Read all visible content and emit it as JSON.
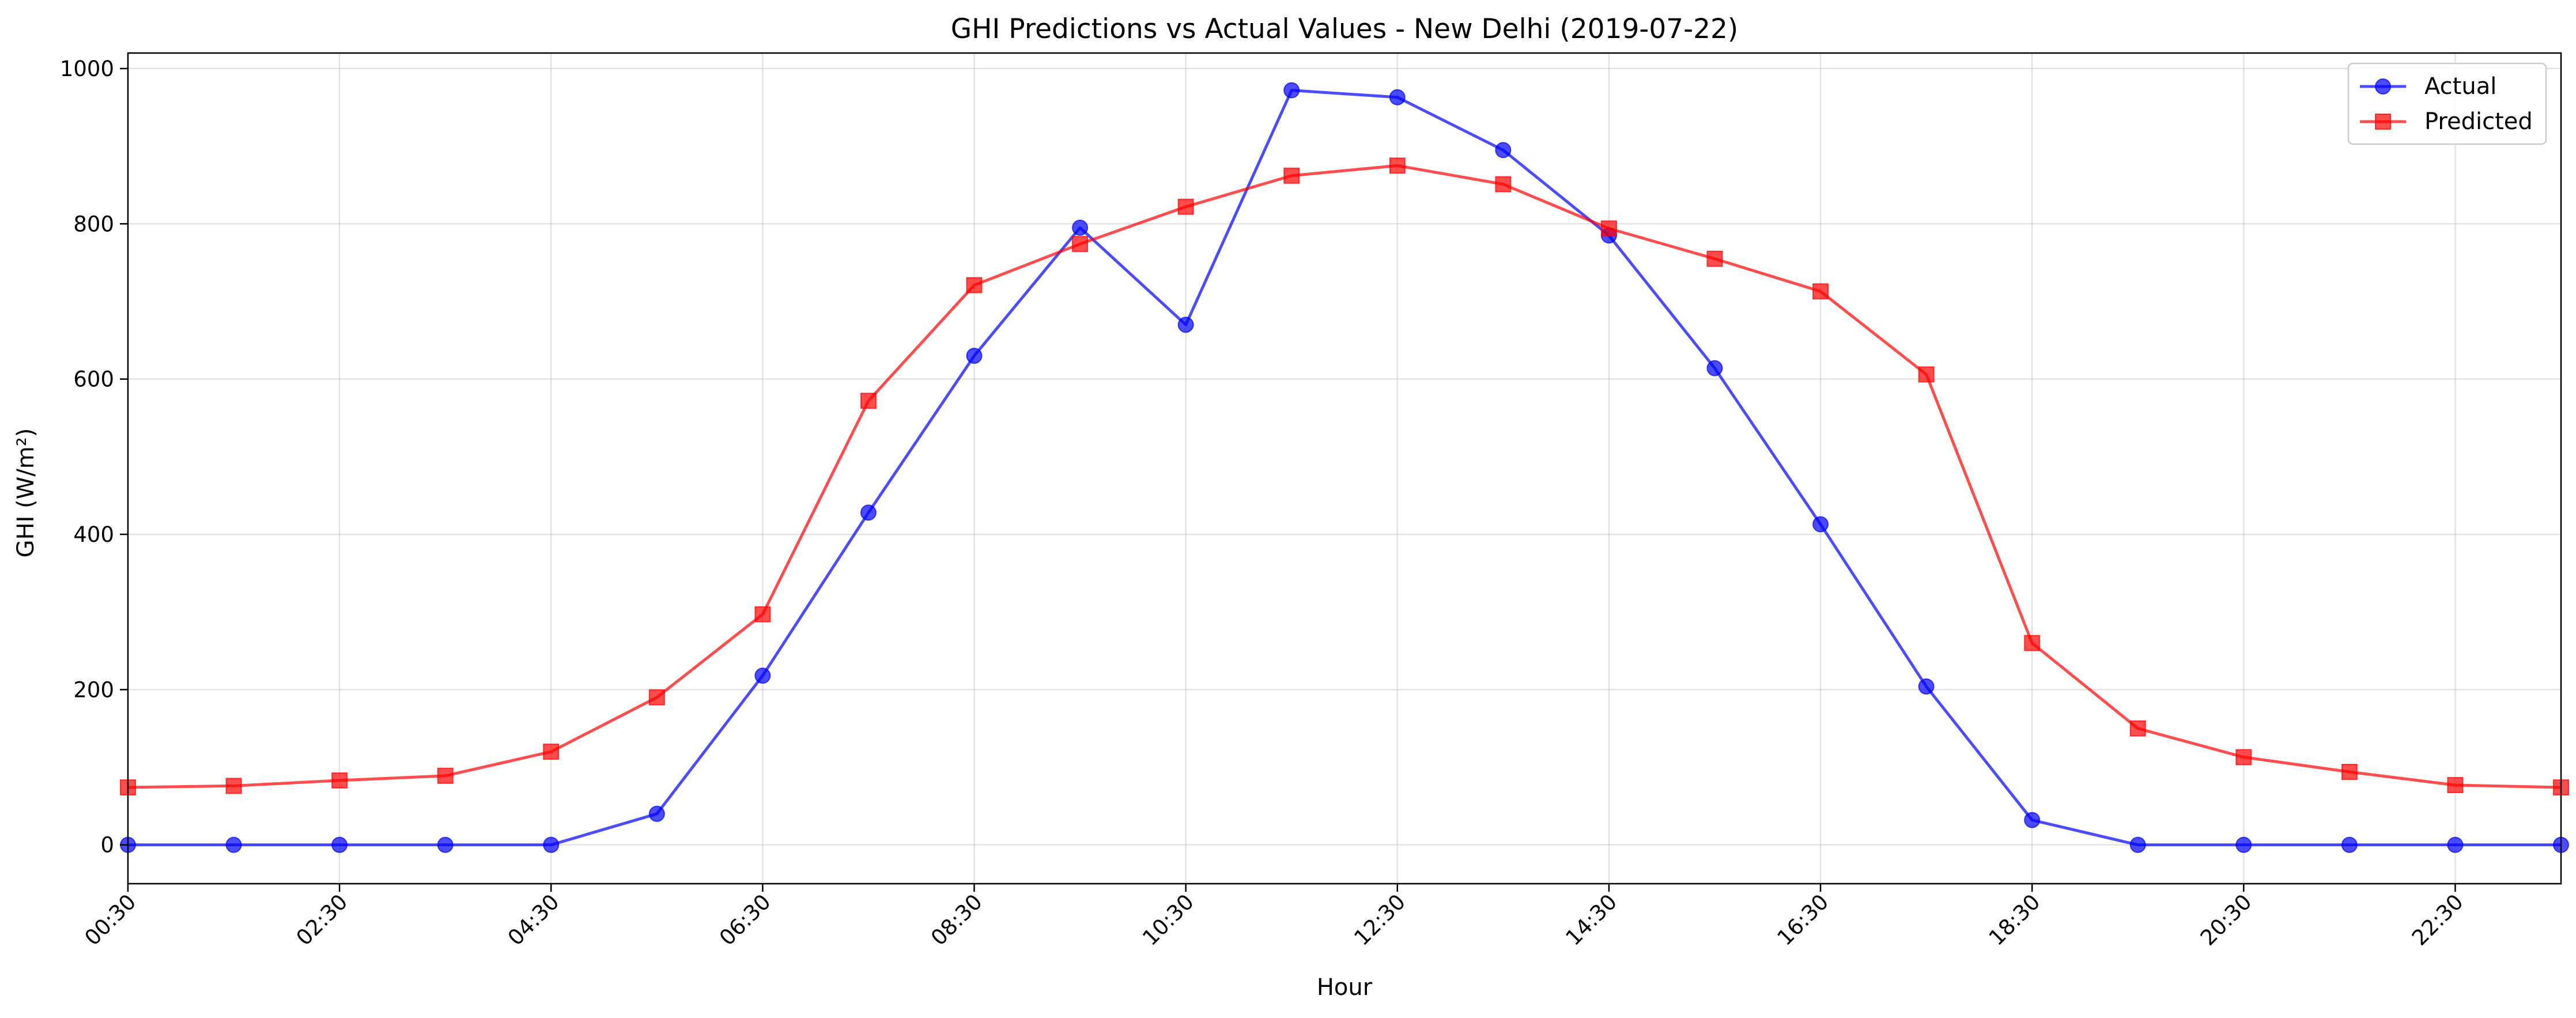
{
  "chart_data": {
    "type": "line",
    "title": "GHI Predictions vs Actual Values - New Delhi (2019-07-22)",
    "xlabel": "Hour",
    "ylabel": "GHI (W/m²)",
    "ylim": [
      -50,
      1020
    ],
    "y_ticks": [
      0,
      200,
      400,
      600,
      800,
      1000
    ],
    "x": [
      "00:30",
      "01:30",
      "02:30",
      "03:30",
      "04:30",
      "05:30",
      "06:30",
      "07:30",
      "08:30",
      "09:30",
      "10:30",
      "11:30",
      "12:30",
      "13:30",
      "14:30",
      "15:30",
      "16:30",
      "17:30",
      "18:30",
      "19:30",
      "20:30",
      "21:30",
      "22:30",
      "23:30"
    ],
    "x_tick_labels": [
      "00:30",
      "02:30",
      "04:30",
      "06:30",
      "08:30",
      "10:30",
      "12:30",
      "14:30",
      "16:30",
      "18:30",
      "20:30",
      "22:30"
    ],
    "grid": true,
    "legend_position": "top-right",
    "series": [
      {
        "name": "Actual",
        "color": "#0000ff",
        "marker": "circle",
        "values": [
          0,
          0,
          0,
          0,
          0,
          40,
          218,
          428,
          630,
          795,
          670,
          972,
          963,
          895,
          785,
          614,
          413,
          204,
          32,
          0,
          0,
          0,
          0,
          0
        ]
      },
      {
        "name": "Predicted",
        "color": "#ff0000",
        "marker": "square",
        "values": [
          74,
          76,
          83,
          89,
          120,
          190,
          297,
          572,
          721,
          774,
          822,
          862,
          875,
          851,
          794,
          755,
          713,
          606,
          260,
          150,
          113,
          94,
          77,
          74
        ]
      }
    ]
  }
}
